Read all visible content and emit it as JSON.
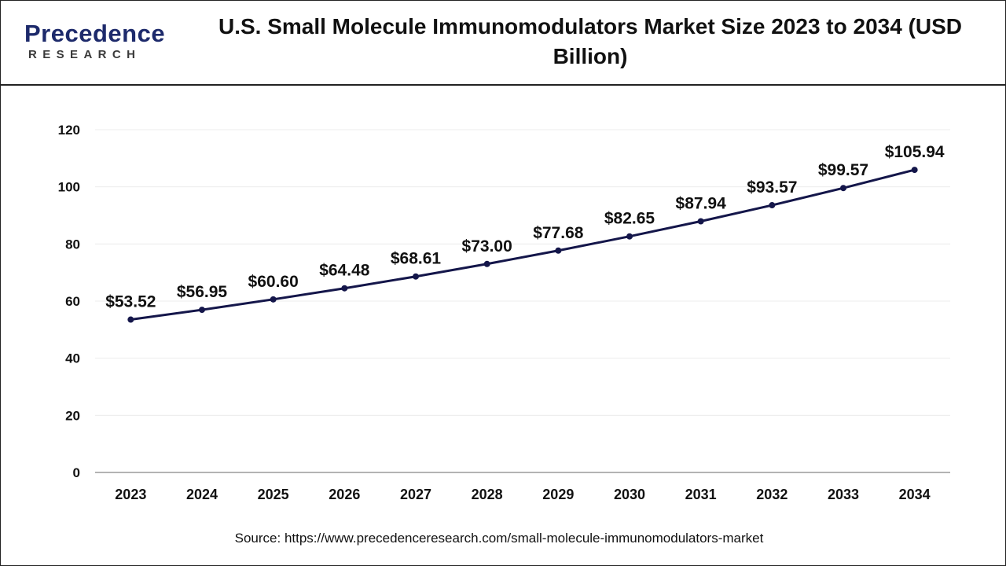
{
  "brand": {
    "name": "Precedence",
    "sub": "RESEARCH"
  },
  "chart_data": {
    "type": "line",
    "title": "U.S. Small Molecule Immunomodulators Market Size 2023 to 2034 (USD Billion)",
    "xlabel": "",
    "ylabel": "",
    "categories": [
      "2023",
      "2024",
      "2025",
      "2026",
      "2027",
      "2028",
      "2029",
      "2030",
      "2031",
      "2032",
      "2033",
      "2034"
    ],
    "values": [
      53.52,
      56.95,
      60.6,
      64.48,
      68.61,
      73.0,
      77.68,
      82.65,
      87.94,
      93.57,
      99.57,
      105.94
    ],
    "data_labels": [
      "$53.52",
      "$56.95",
      "$60.60",
      "$64.48",
      "$68.61",
      "$73.00",
      "$77.68",
      "$82.65",
      "$87.94",
      "$93.57",
      "$99.57",
      "$105.94"
    ],
    "ylim": [
      0,
      120
    ],
    "yticks": [
      0,
      20,
      40,
      60,
      80,
      100,
      120
    ],
    "grid": true,
    "line_color": "#14164a"
  },
  "source": "Source: https://www.precedenceresearch.com/small-molecule-immunomodulators-market"
}
